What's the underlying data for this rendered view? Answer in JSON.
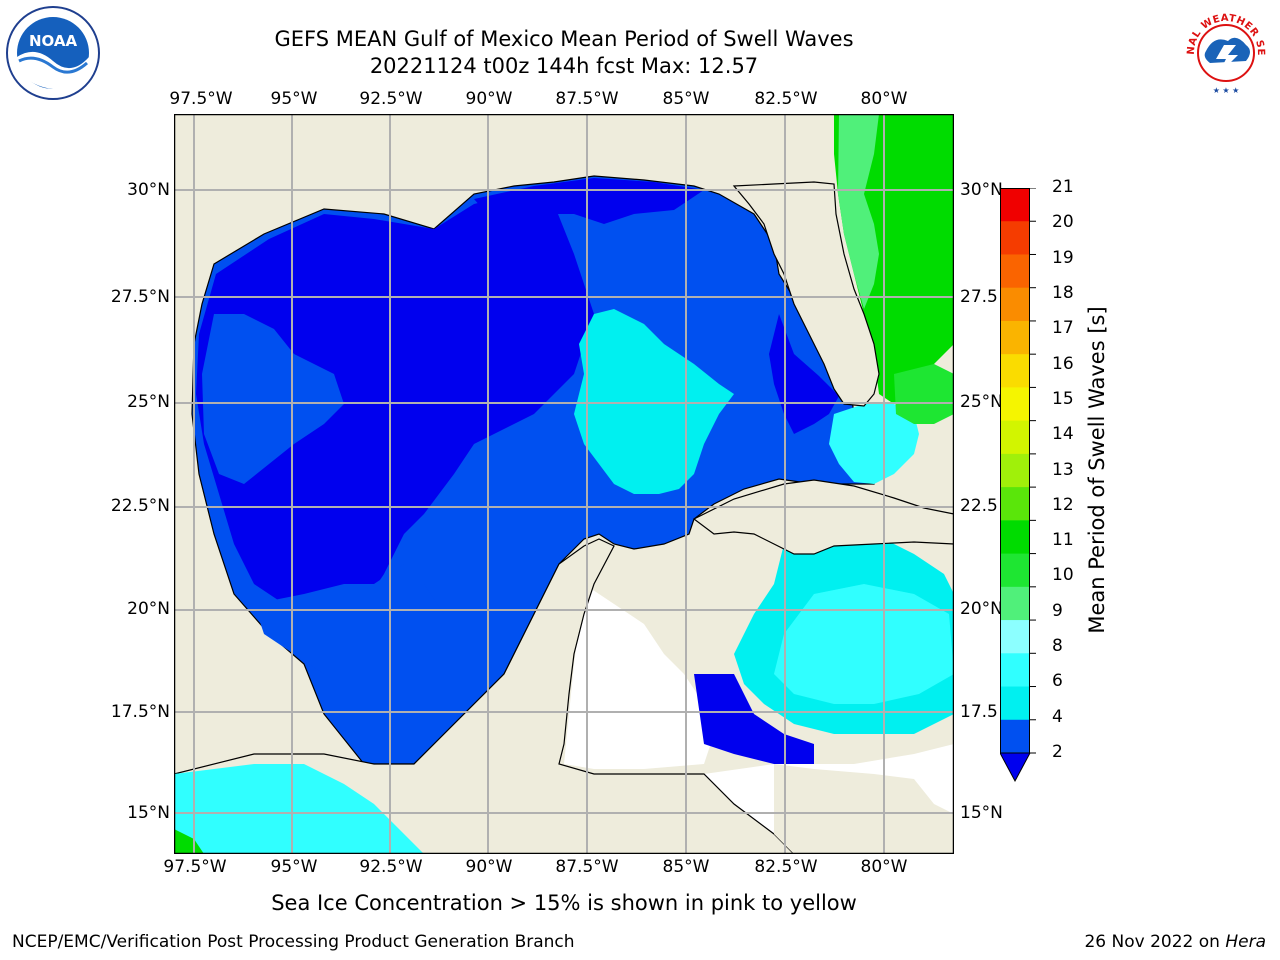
{
  "title": {
    "line1": "GEFS MEAN Gulf of Mexico Mean Period of Swell Waves",
    "line2": "20221124 t00z 144h fcst   Max: 12.57"
  },
  "logos": {
    "left": "NOAA",
    "right": "NATIONAL WEATHER SERVICE"
  },
  "map": {
    "lon_labels": [
      "97.5°W",
      "95°W",
      "92.5°W",
      "90°W",
      "87.5°W",
      "85°W",
      "82.5°W",
      "80°W"
    ],
    "lat_labels_left": [
      "30°N",
      "27.5°N",
      "25°N",
      "22.5°N",
      "20°N",
      "17.5°N",
      "15°N"
    ],
    "lat_labels_right": [
      "30°N",
      "27.5",
      "25°N",
      "22.5",
      "20°N",
      "17.5",
      "15°N"
    ],
    "colors": {
      "land": "#eeecdc",
      "ocean_missing": "#ffffff",
      "grid": "#b0b0b0"
    }
  },
  "colorbar": {
    "title": "Mean Period of Swell Waves [s]",
    "tick_labels": [
      "21",
      "20",
      "19",
      "18",
      "17",
      "16",
      "15",
      "14",
      "13",
      "12",
      "11",
      "10",
      "9",
      "8",
      "6",
      "4",
      "2"
    ],
    "levels": [
      2,
      4,
      6,
      8,
      9,
      10,
      11,
      12,
      13,
      14,
      15,
      16,
      17,
      18,
      19,
      20,
      21
    ],
    "colors": [
      "#0050f0",
      "#00f0f0",
      "#30ffff",
      "#8cffff",
      "#50f07a",
      "#1ee632",
      "#00dc00",
      "#5ae60a",
      "#a0f00a",
      "#d2f500",
      "#f5f500",
      "#fadc00",
      "#fab400",
      "#fa8c00",
      "#fa6400",
      "#f53c00",
      "#f00000"
    ],
    "under_color": "#0000ee"
  },
  "note": "Sea Ice Concentration > 15% is shown in pink to yellow",
  "footer": {
    "left": "NCEP/EMC/Verification Post Processing Product Generation Branch",
    "right_date": "26 Nov 2022 on ",
    "right_machine": "Hera"
  }
}
